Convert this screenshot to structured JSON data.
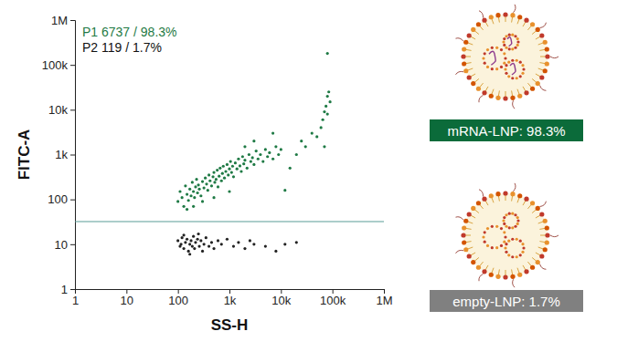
{
  "chart_data": {
    "type": "scatter",
    "x_label": "SS-H",
    "y_label": "FITC-A",
    "log": true,
    "xlim": [
      1,
      1000000
    ],
    "ylim": [
      1,
      1000000
    ],
    "xticks": [
      1,
      10,
      100,
      {
        "value": 1000,
        "label": "1k"
      },
      {
        "value": 10000,
        "label": "10k"
      },
      {
        "value": 100000,
        "label": "100k"
      },
      {
        "value": 1000000,
        "label": "1M"
      }
    ],
    "yticks": [
      1,
      10,
      100,
      {
        "value": 1000,
        "label": "1k"
      },
      {
        "value": 10000,
        "label": "10k"
      },
      {
        "value": 100000,
        "label": "100k"
      },
      {
        "value": 1000000,
        "label": "1M"
      }
    ],
    "threshold": 32,
    "series": [
      {
        "color": "#1f7a45",
        "x": [
          100,
          110,
          120,
          130,
          140,
          150,
          160,
          170,
          180,
          190,
          200,
          210,
          220,
          230,
          240,
          250,
          260,
          280,
          300,
          320,
          340,
          360,
          380,
          400,
          420,
          450,
          480,
          500,
          520,
          550,
          580,
          600,
          630,
          660,
          700,
          730,
          760,
          800,
          850,
          900,
          950,
          1000,
          1050,
          1100,
          1150,
          1200,
          1300,
          1400,
          1500,
          1600,
          1700,
          1800,
          1900,
          2000,
          2200,
          2400,
          2600,
          2800,
          3000,
          3300,
          3600,
          4000,
          4500,
          5000,
          5500,
          6000,
          7000,
          8000,
          9000,
          10000,
          12000,
          15000,
          20000,
          25000,
          30000,
          40000,
          50000,
          60000,
          65000,
          70000,
          75000,
          80000,
          80000,
          85000,
          90000,
          70000,
          80000,
          3000,
          2000,
          1000,
          500,
          300,
          7000,
          150,
          200
        ],
        "values": [
          90,
          150,
          110,
          70,
          200,
          130,
          95,
          170,
          120,
          240,
          150,
          110,
          190,
          280,
          140,
          210,
          170,
          120,
          250,
          180,
          300,
          220,
          160,
          350,
          260,
          200,
          320,
          400,
          240,
          280,
          450,
          190,
          330,
          500,
          260,
          380,
          550,
          300,
          420,
          600,
          350,
          480,
          700,
          400,
          550,
          320,
          650,
          480,
          800,
          560,
          420,
          900,
          620,
          750,
          500,
          1000,
          700,
          850,
          600,
          1200,
          800,
          1000,
          700,
          1300,
          900,
          1100,
          800,
          1500,
          1000,
          1300,
          160,
          500,
          1000,
          2000,
          1500,
          3000,
          2500,
          4000,
          6000,
          9000,
          12000,
          8000,
          20000,
          25000,
          15000,
          1500,
          180000,
          2000,
          1500,
          150,
          110,
          90,
          3000,
          60,
          70
        ]
      },
      {
        "color": "#222222",
        "x": [
          100,
          110,
          120,
          130,
          140,
          150,
          160,
          170,
          180,
          190,
          200,
          210,
          220,
          240,
          260,
          280,
          300,
          320,
          350,
          400,
          450,
          500,
          600,
          700,
          900,
          1200,
          1500,
          2000,
          2500,
          3000,
          5000,
          8000,
          12000,
          20000,
          130,
          170,
          250,
          115
        ],
        "values": [
          12,
          9,
          14,
          8,
          11,
          13,
          7,
          10,
          12,
          9,
          15,
          8,
          11,
          13,
          9,
          12,
          7,
          10,
          14,
          9,
          11,
          8,
          12,
          10,
          13,
          9,
          11,
          8,
          12,
          10,
          9,
          7,
          10,
          11,
          16,
          6,
          17,
          10
        ]
      }
    ],
    "annotations": [
      {
        "text": "P1  6737 / 98.3%",
        "color": "#1f7a45"
      },
      {
        "text": "P2  119 / 1.7%",
        "color": "#111111"
      },
      {
        "text": "mRNA-LNP: 98.3%",
        "color": "#0b6b3a"
      },
      {
        "text": "empty-LNP: 1.7%",
        "color": "#808080"
      }
    ]
  }
}
